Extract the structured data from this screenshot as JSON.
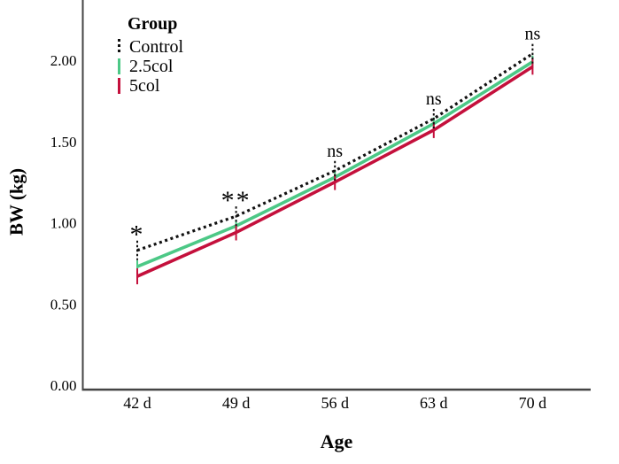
{
  "chart_data": {
    "type": "line",
    "title": "",
    "xlabel": "Age",
    "ylabel": "BW (kg)",
    "legend_title": "Group",
    "legend_position": "top-left",
    "grid": false,
    "error_bars": true,
    "categories": [
      "42 d",
      "49 d",
      "56 d",
      "63 d",
      "70 d"
    ],
    "series": [
      {
        "name": "Control",
        "color": "#111111",
        "style": "dotted",
        "values": [
          0.83,
          1.04,
          1.32,
          1.64,
          2.04
        ]
      },
      {
        "name": "2.5col",
        "color": "#4cc886",
        "style": "solid",
        "values": [
          0.73,
          0.98,
          1.28,
          1.61,
          1.99
        ]
      },
      {
        "name": "5col",
        "color": "#c4103c",
        "style": "solid",
        "values": [
          0.67,
          0.94,
          1.25,
          1.57,
          1.96
        ]
      }
    ],
    "annotations": [
      {
        "category": "42 d",
        "text": "*"
      },
      {
        "category": "49 d",
        "text": "**"
      },
      {
        "category": "56 d",
        "text": "ns"
      },
      {
        "category": "63 d",
        "text": "ns"
      },
      {
        "category": "70 d",
        "text": "ns"
      }
    ],
    "y_ticks": [
      "0.00",
      "0.50",
      "1.00",
      "1.50",
      "2.00"
    ],
    "ylim": [
      0.0,
      2.2
    ],
    "axis_color": "#444444"
  }
}
